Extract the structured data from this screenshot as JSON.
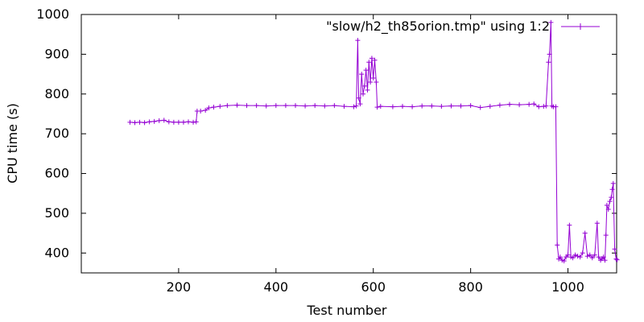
{
  "chart_data": {
    "type": "line",
    "xlabel": "Test number",
    "ylabel": "CPU time (s)",
    "xlim": [
      0,
      1100
    ],
    "ylim": [
      350,
      1000
    ],
    "x_ticks": [
      200,
      400,
      600,
      800,
      1000
    ],
    "y_ticks": [
      400,
      500,
      600,
      700,
      800,
      900,
      1000
    ],
    "legend_position": "top-right",
    "series": [
      {
        "name": "\"slow/h2_th85orion.tmp\" using 1:2",
        "color": "#9400d3",
        "marker": "plus",
        "points": [
          [
            100,
            729
          ],
          [
            110,
            728
          ],
          [
            120,
            729
          ],
          [
            130,
            728
          ],
          [
            140,
            730
          ],
          [
            150,
            731
          ],
          [
            160,
            733
          ],
          [
            170,
            734
          ],
          [
            180,
            730
          ],
          [
            190,
            729
          ],
          [
            200,
            729
          ],
          [
            210,
            729
          ],
          [
            220,
            730
          ],
          [
            230,
            729
          ],
          [
            236,
            730
          ],
          [
            238,
            757
          ],
          [
            245,
            757
          ],
          [
            255,
            759
          ],
          [
            262,
            765
          ],
          [
            272,
            767
          ],
          [
            285,
            769
          ],
          [
            300,
            771
          ],
          [
            320,
            772
          ],
          [
            340,
            771
          ],
          [
            360,
            771
          ],
          [
            380,
            770
          ],
          [
            400,
            771
          ],
          [
            420,
            771
          ],
          [
            440,
            771
          ],
          [
            460,
            770
          ],
          [
            480,
            771
          ],
          [
            500,
            770
          ],
          [
            520,
            771
          ],
          [
            540,
            769
          ],
          [
            560,
            768
          ],
          [
            565,
            770
          ],
          [
            568,
            935
          ],
          [
            570,
            790
          ],
          [
            573,
            775
          ],
          [
            576,
            850
          ],
          [
            579,
            800
          ],
          [
            582,
            820
          ],
          [
            585,
            860
          ],
          [
            588,
            810
          ],
          [
            591,
            880
          ],
          [
            594,
            830
          ],
          [
            597,
            890
          ],
          [
            600,
            840
          ],
          [
            603,
            885
          ],
          [
            606,
            830
          ],
          [
            608,
            767
          ],
          [
            615,
            769
          ],
          [
            640,
            768
          ],
          [
            660,
            769
          ],
          [
            680,
            768
          ],
          [
            700,
            770
          ],
          [
            720,
            770
          ],
          [
            740,
            769
          ],
          [
            760,
            770
          ],
          [
            780,
            770
          ],
          [
            800,
            771
          ],
          [
            820,
            766
          ],
          [
            840,
            769
          ],
          [
            860,
            772
          ],
          [
            880,
            774
          ],
          [
            900,
            773
          ],
          [
            920,
            774
          ],
          [
            930,
            775
          ],
          [
            940,
            768
          ],
          [
            950,
            769
          ],
          [
            955,
            770
          ],
          [
            960,
            880
          ],
          [
            962,
            900
          ],
          [
            965,
            980
          ],
          [
            967,
            770
          ],
          [
            970,
            768
          ],
          [
            975,
            768
          ],
          [
            978,
            420
          ],
          [
            981,
            385
          ],
          [
            984,
            390
          ],
          [
            988,
            382
          ],
          [
            992,
            380
          ],
          [
            996,
            390
          ],
          [
            1000,
            395
          ],
          [
            1003,
            470
          ],
          [
            1006,
            390
          ],
          [
            1010,
            388
          ],
          [
            1015,
            395
          ],
          [
            1020,
            392
          ],
          [
            1025,
            390
          ],
          [
            1030,
            400
          ],
          [
            1035,
            450
          ],
          [
            1040,
            392
          ],
          [
            1045,
            395
          ],
          [
            1050,
            388
          ],
          [
            1055,
            395
          ],
          [
            1060,
            475
          ],
          [
            1063,
            390
          ],
          [
            1067,
            382
          ],
          [
            1070,
            386
          ],
          [
            1073,
            390
          ],
          [
            1076,
            382
          ],
          [
            1078,
            445
          ],
          [
            1080,
            520
          ],
          [
            1083,
            510
          ],
          [
            1086,
            530
          ],
          [
            1089,
            540
          ],
          [
            1091,
            560
          ],
          [
            1093,
            575
          ],
          [
            1096,
            410
          ],
          [
            1099,
            385
          ],
          [
            1101,
            383
          ]
        ]
      }
    ]
  }
}
